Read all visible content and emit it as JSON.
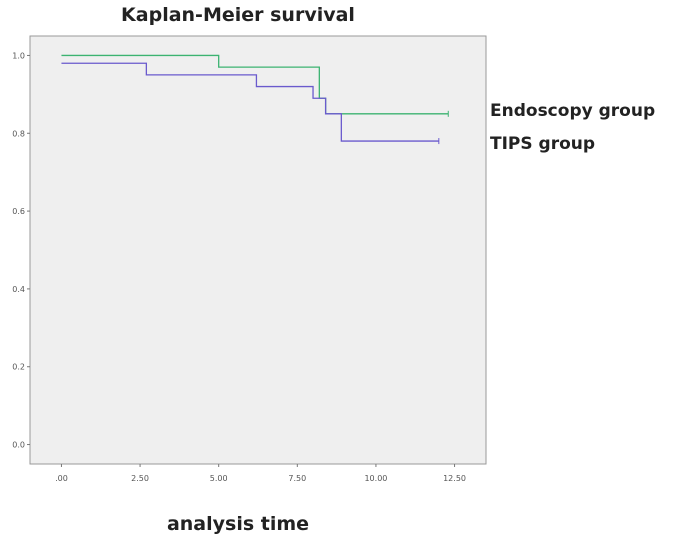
{
  "chart_data": {
    "type": "line",
    "title": "Kaplan-Meier survival",
    "xlabel": "analysis time",
    "ylabel": "",
    "xlim": [
      -1,
      13.5
    ],
    "ylim": [
      -0.05,
      1.05
    ],
    "x_ticks": [
      0,
      2.5,
      5,
      7.5,
      10,
      12.5
    ],
    "x_tick_labels": [
      ".00",
      "2.50",
      "5.00",
      "7.50",
      "10.00",
      "12.50"
    ],
    "y_ticks": [
      0,
      0.2,
      0.4,
      0.6,
      0.8,
      1.0
    ],
    "y_tick_labels": [
      "0.0",
      "0.2",
      "0.4",
      "0.6",
      "0.8",
      "1.0"
    ],
    "grid": false,
    "legend_position": "right",
    "series": [
      {
        "name": "Endoscopy group",
        "color": "#3cb371",
        "step_x": [
          0,
          5.0,
          8.2,
          8.4,
          12.3
        ],
        "step_y": [
          1.0,
          0.97,
          0.89,
          0.85,
          0.85
        ]
      },
      {
        "name": "TIPS group",
        "color": "#6a5acd",
        "step_x": [
          0,
          2.7,
          6.2,
          8.0,
          8.4,
          8.9,
          12.0
        ],
        "step_y": [
          0.98,
          0.95,
          0.92,
          0.89,
          0.85,
          0.78,
          0.78
        ]
      }
    ]
  }
}
